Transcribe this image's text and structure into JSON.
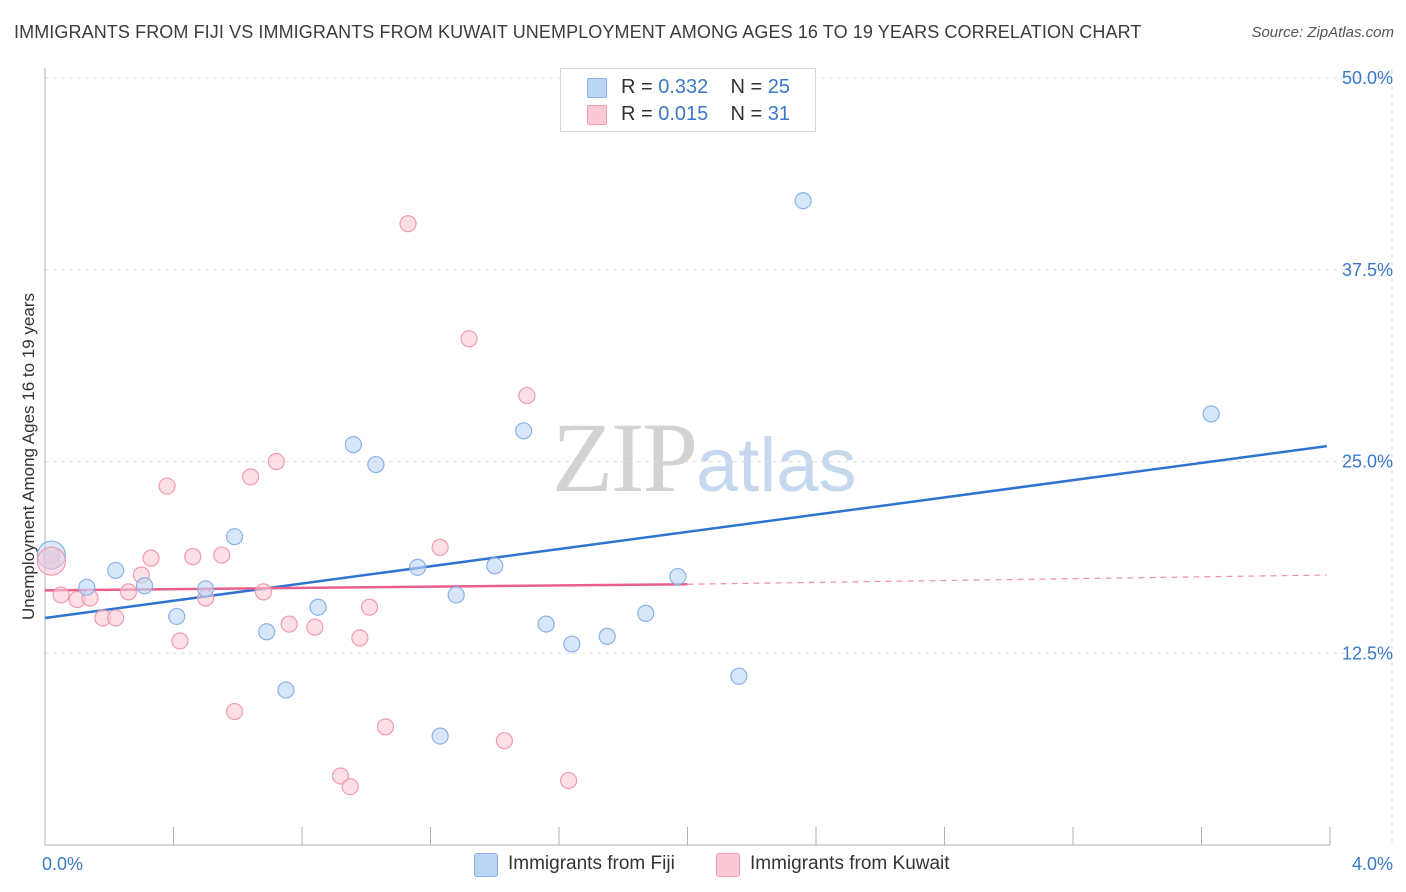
{
  "header": {
    "title": "IMMIGRANTS FROM FIJI VS IMMIGRANTS FROM KUWAIT UNEMPLOYMENT AMONG AGES 16 TO 19 YEARS CORRELATION CHART",
    "source": "Source: ZipAtlas.com"
  },
  "watermark": {
    "part1": "ZIP",
    "part2": "atlas"
  },
  "legend": {
    "r_label": "R =",
    "n_label": "N =",
    "rows": [
      {
        "r": "0.332",
        "n": "25"
      },
      {
        "r": "0.015",
        "n": "31"
      }
    ]
  },
  "colors": {
    "fiji_fill": "#bcd5f5",
    "fiji_stroke": "#8ab2e6",
    "fiji_line": "#2f73d0",
    "kuwait_fill": "#fbc9d6",
    "kuwait_stroke": "#f09ab2",
    "kuwait_line": "#e8608a",
    "grid": "#dedede",
    "tick_text": "#3a78c9"
  },
  "chart_data": {
    "type": "scatter",
    "title": "IMMIGRANTS FROM FIJI VS IMMIGRANTS FROM KUWAIT UNEMPLOYMENT AMONG AGES 16 TO 19 YEARS CORRELATION CHART",
    "xlabel": "",
    "ylabel": "Unemployment Among Ages 16 to 19 years",
    "xlim": [
      0,
      4.0
    ],
    "ylim": [
      0,
      50
    ],
    "x_tick_labels": [
      "0.0%",
      "4.0%"
    ],
    "y_ticks": [
      12.5,
      25.0,
      37.5,
      50.0
    ],
    "y_tick_labels": [
      "12.5%",
      "25.0%",
      "37.5%",
      "50.0%"
    ],
    "grid": true,
    "legend_position": "top-center",
    "series": [
      {
        "name": "Immigrants from Fiji",
        "r": 0.332,
        "n": 25,
        "points": [
          [
            0.02,
            18.9
          ],
          [
            0.13,
            16.8
          ],
          [
            0.22,
            17.9
          ],
          [
            0.31,
            16.9
          ],
          [
            0.41,
            14.9
          ],
          [
            0.5,
            16.7
          ],
          [
            0.59,
            20.1
          ],
          [
            0.69,
            13.9
          ],
          [
            0.75,
            10.1
          ],
          [
            0.85,
            15.5
          ],
          [
            0.96,
            26.1
          ],
          [
            1.03,
            24.8
          ],
          [
            1.16,
            18.1
          ],
          [
            1.23,
            7.1
          ],
          [
            1.28,
            16.3
          ],
          [
            1.4,
            18.2
          ],
          [
            1.49,
            27.0
          ],
          [
            1.56,
            14.4
          ],
          [
            1.64,
            13.1
          ],
          [
            1.75,
            13.6
          ],
          [
            1.87,
            15.1
          ],
          [
            1.97,
            17.5
          ],
          [
            2.16,
            11.0
          ],
          [
            2.36,
            42.0
          ],
          [
            3.63,
            28.1
          ]
        ],
        "trend": {
          "x": [
            0,
            3.99
          ],
          "y": [
            14.8,
            26.0
          ]
        }
      },
      {
        "name": "Immigrants from Kuwait",
        "r": 0.015,
        "n": 31,
        "points": [
          [
            0.02,
            18.5
          ],
          [
            0.05,
            16.3
          ],
          [
            0.1,
            16.0
          ],
          [
            0.14,
            16.1
          ],
          [
            0.18,
            14.8
          ],
          [
            0.22,
            14.8
          ],
          [
            0.26,
            16.5
          ],
          [
            0.3,
            17.6
          ],
          [
            0.33,
            18.7
          ],
          [
            0.38,
            23.4
          ],
          [
            0.42,
            13.3
          ],
          [
            0.46,
            18.8
          ],
          [
            0.5,
            16.1
          ],
          [
            0.55,
            18.9
          ],
          [
            0.59,
            8.7
          ],
          [
            0.64,
            24.0
          ],
          [
            0.68,
            16.5
          ],
          [
            0.72,
            25.0
          ],
          [
            0.76,
            14.4
          ],
          [
            0.84,
            14.2
          ],
          [
            0.92,
            4.5
          ],
          [
            0.95,
            3.8
          ],
          [
            0.98,
            13.5
          ],
          [
            1.01,
            15.5
          ],
          [
            1.06,
            7.7
          ],
          [
            1.13,
            40.5
          ],
          [
            1.23,
            19.4
          ],
          [
            1.32,
            33.0
          ],
          [
            1.43,
            6.8
          ],
          [
            1.5,
            29.3
          ],
          [
            1.63,
            4.2
          ]
        ],
        "trend": {
          "x": [
            0,
            2.0
          ],
          "y": [
            16.6,
            17.0
          ]
        },
        "trend_extension": {
          "x": [
            2.0,
            3.99
          ],
          "y": [
            17.0,
            17.6
          ]
        }
      }
    ]
  },
  "bottom_legend": [
    {
      "label": "Immigrants from Fiji"
    },
    {
      "label": "Immigrants from Kuwait"
    }
  ]
}
